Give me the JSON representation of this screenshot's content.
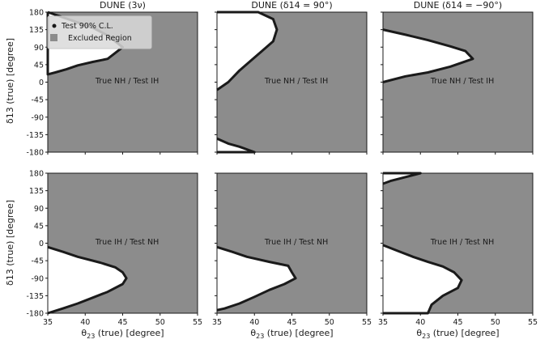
{
  "colors": {
    "excluded": "#8c8c8c",
    "allowed": "#ffffff",
    "contour": "#1a1a1a",
    "marker": "#8c8c8c"
  },
  "legend": {
    "contour_label": "Test 90% C.L.",
    "region_label": "Excluded Region"
  },
  "chart_data": [
    {
      "type": "area",
      "id": "p00",
      "title": "DUNE (3ν)",
      "xlabel": "",
      "ylabel": "δ13 (true) [degree]",
      "xlim": [
        35,
        55
      ],
      "ylim": [
        -180,
        180
      ],
      "annotation": "True NH / Test IH",
      "allowed_regions": [
        [
          [
            35,
            180
          ],
          [
            35,
            20
          ],
          [
            36,
            25
          ],
          [
            37.5,
            33
          ],
          [
            39,
            43
          ],
          [
            41,
            52
          ],
          [
            43,
            60
          ],
          [
            45,
            90
          ],
          [
            43,
            120
          ],
          [
            41,
            140
          ],
          [
            38,
            160
          ],
          [
            35,
            180
          ]
        ]
      ]
    },
    {
      "type": "area",
      "id": "p01",
      "title": "DUNE (δ14 = 90°)",
      "xlabel": "",
      "ylabel": "",
      "xlim": [
        35,
        55
      ],
      "ylim": [
        -180,
        180
      ],
      "annotation": "True NH / Test IH",
      "allowed_regions": [
        [
          [
            35,
            180
          ],
          [
            40.5,
            180
          ],
          [
            42.5,
            162
          ],
          [
            43,
            135
          ],
          [
            42.5,
            105
          ],
          [
            41,
            80
          ],
          [
            39.5,
            55
          ],
          [
            38,
            30
          ],
          [
            36.5,
            0
          ],
          [
            35,
            -20
          ]
        ],
        [
          [
            35,
            -145
          ],
          [
            36.5,
            -158
          ],
          [
            38,
            -166
          ],
          [
            40,
            -180
          ],
          [
            35,
            -180
          ]
        ]
      ]
    },
    {
      "type": "area",
      "id": "p02",
      "title": "DUNE (δ14 = −90°)",
      "xlabel": "",
      "ylabel": "",
      "xlim": [
        35,
        55
      ],
      "ylim": [
        -180,
        180
      ],
      "annotation": "True NH / Test IH",
      "allowed_regions": [
        [
          [
            35,
            135
          ],
          [
            38,
            122
          ],
          [
            41,
            108
          ],
          [
            44,
            92
          ],
          [
            46,
            80
          ],
          [
            47,
            60
          ],
          [
            44,
            40
          ],
          [
            41,
            25
          ],
          [
            38,
            15
          ],
          [
            35,
            0
          ]
        ]
      ]
    },
    {
      "type": "area",
      "id": "p10",
      "title": "",
      "xlabel": "θ23 (true) [degree]",
      "ylabel": "δ13 (true) [degree]",
      "xlim": [
        35,
        55
      ],
      "ylim": [
        -180,
        180
      ],
      "annotation": "True IH / Test NH",
      "allowed_regions": [
        [
          [
            35,
            -10
          ],
          [
            37,
            -22
          ],
          [
            39,
            -35
          ],
          [
            42,
            -50
          ],
          [
            44,
            -62
          ],
          [
            45,
            -75
          ],
          [
            45.5,
            -90
          ],
          [
            45,
            -105
          ],
          [
            43,
            -125
          ],
          [
            41,
            -140
          ],
          [
            39,
            -155
          ],
          [
            37,
            -168
          ],
          [
            35,
            -180
          ]
        ]
      ]
    },
    {
      "type": "area",
      "id": "p11",
      "title": "",
      "xlabel": "θ23 (true) [degree]",
      "ylabel": "",
      "xlim": [
        35,
        55
      ],
      "ylim": [
        -180,
        180
      ],
      "annotation": "True IH / Test NH",
      "allowed_regions": [
        [
          [
            35,
            -10
          ],
          [
            37,
            -22
          ],
          [
            39,
            -35
          ],
          [
            42,
            -48
          ],
          [
            44.5,
            -58
          ],
          [
            45,
            -75
          ],
          [
            45.5,
            -90
          ],
          [
            44,
            -105
          ],
          [
            42,
            -120
          ],
          [
            40,
            -138
          ],
          [
            38,
            -155
          ],
          [
            36,
            -168
          ],
          [
            35,
            -172
          ]
        ]
      ]
    },
    {
      "type": "area",
      "id": "p12",
      "title": "",
      "xlabel": "θ23 (true) [degree]",
      "ylabel": "",
      "xlim": [
        35,
        55
      ],
      "ylim": [
        -180,
        180
      ],
      "annotation": "True IH / Test NH",
      "allowed_regions": [
        [
          [
            35,
            180
          ],
          [
            40,
            180
          ],
          [
            38,
            170
          ],
          [
            36,
            160
          ],
          [
            35,
            153
          ]
        ],
        [
          [
            35,
            -5
          ],
          [
            37,
            -20
          ],
          [
            39,
            -35
          ],
          [
            41,
            -48
          ],
          [
            43,
            -60
          ],
          [
            44.5,
            -75
          ],
          [
            45.5,
            -95
          ],
          [
            45,
            -115
          ],
          [
            43,
            -135
          ],
          [
            41.5,
            -158
          ],
          [
            41,
            -180
          ],
          [
            35,
            -180
          ]
        ]
      ]
    }
  ]
}
